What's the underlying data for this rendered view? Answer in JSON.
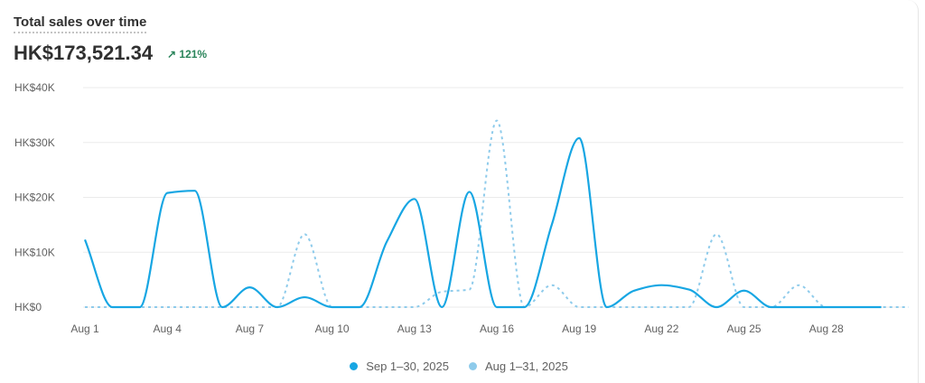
{
  "header": {
    "title": "Total sales over time",
    "total": "HK$173,521.34",
    "delta_icon": "arrow-up-right-icon",
    "delta": "↗ 121%"
  },
  "colors": {
    "current": "#17a6e3",
    "previous": "#8ecbeb",
    "grid": "#ebebeb",
    "axis_text": "#616161"
  },
  "chart_data": {
    "type": "line",
    "title": "Total sales over time",
    "xlabel": "",
    "ylabel": "",
    "ylim": [
      0,
      40000
    ],
    "y_ticks": [
      {
        "v": 0,
        "label": "HK$0"
      },
      {
        "v": 10000,
        "label": "HK$10K"
      },
      {
        "v": 20000,
        "label": "HK$20K"
      },
      {
        "v": 30000,
        "label": "HK$30K"
      },
      {
        "v": 40000,
        "label": "HK$40K"
      }
    ],
    "x_ticks": [
      {
        "day": 1,
        "label": "Aug 1"
      },
      {
        "day": 4,
        "label": "Aug 4"
      },
      {
        "day": 7,
        "label": "Aug 7"
      },
      {
        "day": 10,
        "label": "Aug 10"
      },
      {
        "day": 13,
        "label": "Aug 13"
      },
      {
        "day": 16,
        "label": "Aug 16"
      },
      {
        "day": 19,
        "label": "Aug 19"
      },
      {
        "day": 22,
        "label": "Aug 22"
      },
      {
        "day": 25,
        "label": "Aug 25"
      },
      {
        "day": 28,
        "label": "Aug 28"
      }
    ],
    "grid": true,
    "legend_position": "bottom",
    "series": [
      {
        "name": "Sep 1–30, 2025",
        "style": "solid",
        "values": [
          12300,
          0,
          0,
          20800,
          21200,
          0,
          3600,
          0,
          1800,
          0,
          0,
          12000,
          19700,
          0,
          21000,
          0,
          0,
          15000,
          30800,
          0,
          3000,
          4000,
          3200,
          0,
          3000,
          0,
          0,
          0,
          0,
          0
        ]
      },
      {
        "name": "Aug 1–31, 2025",
        "style": "dashed",
        "values": [
          0,
          0,
          0,
          0,
          0,
          0,
          0,
          0,
          13300,
          0,
          0,
          0,
          0,
          2800,
          3200,
          34000,
          0,
          4000,
          0,
          0,
          0,
          0,
          0,
          13300,
          0,
          0,
          4000,
          0,
          0,
          0,
          0
        ]
      }
    ]
  }
}
